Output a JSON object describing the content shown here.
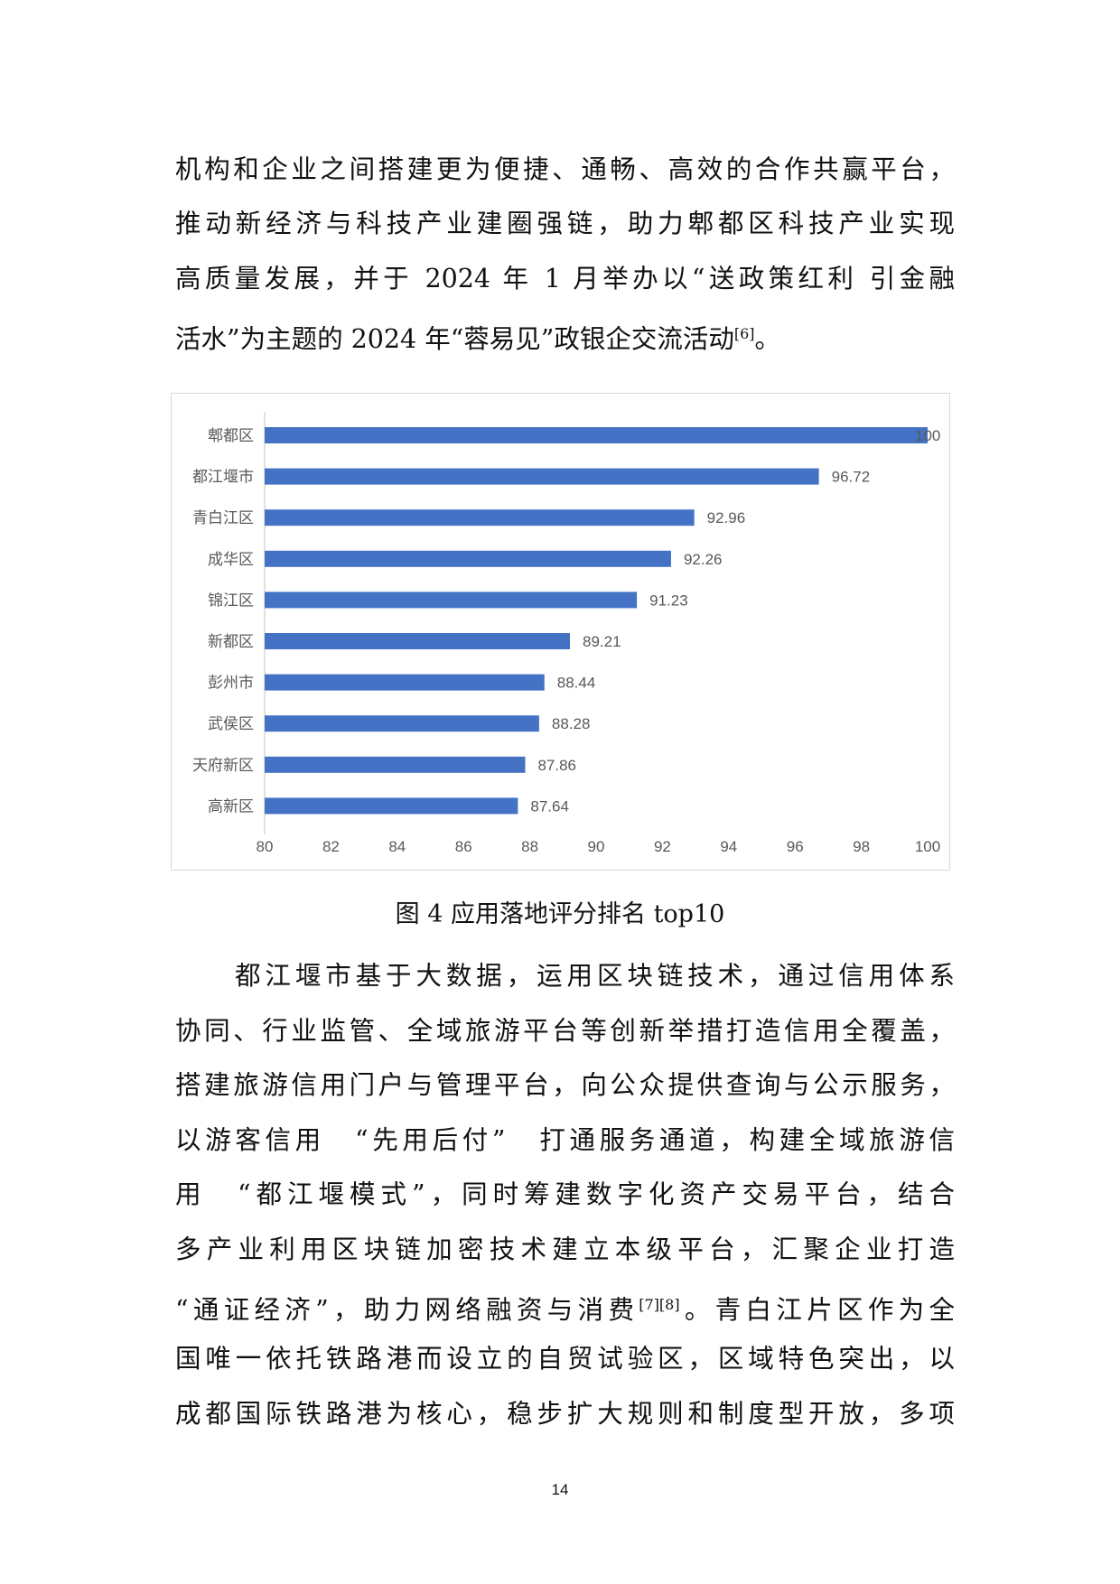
{
  "paragraph1": {
    "lines": [
      "机构和企业之间搭建更为便捷、通畅、高效的合作共赢平台，",
      "推动新经济与科技产业建圈强链，助力郫都区科技产业实现",
      "高质量发展，并于 2024 年 1 月举办以“送政策红利 引金融",
      "活水”为主题的 2024 年“蓉易见”政银企交流活动"
    ],
    "ref": "[6]",
    "end": "。"
  },
  "chart_data": {
    "type": "bar",
    "orientation": "horizontal",
    "categories": [
      "郫都区",
      "都江堰市",
      "青白江区",
      "成华区",
      "锦江区",
      "新都区",
      "彭州市",
      "武侯区",
      "天府新区",
      "高新区"
    ],
    "values": [
      100,
      96.72,
      92.96,
      92.26,
      91.23,
      89.21,
      88.44,
      88.28,
      87.86,
      87.64
    ],
    "data_labels": [
      "100",
      "96.72",
      "92.96",
      "92.26",
      "91.23",
      "89.21",
      "88.44",
      "88.28",
      "87.86",
      "87.64"
    ],
    "xlim": [
      80,
      100
    ],
    "xticks": [
      "80",
      "82",
      "84",
      "86",
      "88",
      "90",
      "92",
      "94",
      "96",
      "98",
      "100"
    ],
    "grid": false,
    "bar_color": "#4472C4",
    "title": "",
    "xlabel": "",
    "ylabel": ""
  },
  "caption": "图 4 应用落地评分排名 top10",
  "paragraph2": {
    "lines": [
      "都江堰市基于大数据，运用区块链技术，通过信用体系",
      "协同、行业监管、全域旅游平台等创新举措打造信用全覆盖，",
      "搭建旅游信用门户与管理平台，向公众提供查询与公示服务，",
      "以游客信用　“先用后付”　打通服务通道，构建全域旅游信",
      "用　“都江堰模式”，同时筹建数字化资产交易平台，结合",
      "多产业利用区块链加密技术建立本级平台，汇聚企业打造",
      "“通证经济”，助力网络融资与消费",
      "国唯一依托铁路港而设立的自贸试验区，区域特色突出，以",
      "成都国际铁路港为核心，稳步扩大规则和制度型开放，多项"
    ],
    "ref": "[7][8]",
    "line7_tail": "。青白江片区作为全"
  },
  "page_number": "14"
}
